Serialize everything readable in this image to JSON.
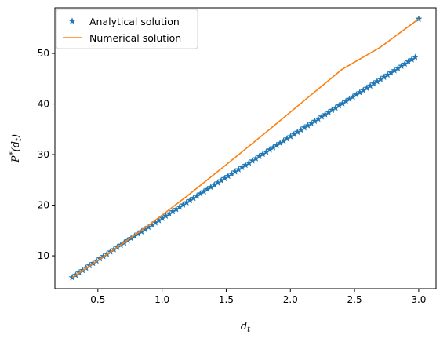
{
  "chart_data": {
    "type": "line",
    "title": "",
    "xlabel": "d_t",
    "ylabel": "P*(d_t)",
    "xlim": [
      0.165,
      3.135
    ],
    "ylim": [
      3.5,
      59.0
    ],
    "x_ticks": [
      0.5,
      1.0,
      1.5,
      2.0,
      2.5,
      3.0
    ],
    "x_tick_labels": [
      "0.5",
      "1.0",
      "1.5",
      "2.0",
      "2.5",
      "3.0"
    ],
    "y_ticks": [
      10,
      20,
      30,
      40,
      50
    ],
    "y_tick_labels": [
      "10",
      "20",
      "30",
      "40",
      "50"
    ],
    "grid": false,
    "legend_position": "top-left",
    "series": [
      {
        "name": "Analytical solution",
        "style": "markers",
        "marker": "star",
        "color": "#1f77b4",
        "x": [
          0.3,
          0.327,
          0.354,
          0.381,
          0.408,
          0.435,
          0.462,
          0.489,
          0.516,
          0.543,
          0.57,
          0.597,
          0.624,
          0.651,
          0.678,
          0.705,
          0.732,
          0.759,
          0.786,
          0.813,
          0.84,
          0.867,
          0.894,
          0.921,
          0.948,
          0.975,
          1.002,
          1.029,
          1.056,
          1.083,
          1.11,
          1.137,
          1.164,
          1.191,
          1.218,
          1.245,
          1.272,
          1.299,
          1.326,
          1.353,
          1.38,
          1.407,
          1.434,
          1.461,
          1.488,
          1.515,
          1.542,
          1.569,
          1.596,
          1.623,
          1.65,
          1.677,
          1.704,
          1.731,
          1.758,
          1.785,
          1.812,
          1.839,
          1.866,
          1.893,
          1.92,
          1.947,
          1.974,
          2.001,
          2.028,
          2.055,
          2.082,
          2.109,
          2.136,
          2.163,
          2.19,
          2.217,
          2.244,
          2.271,
          2.298,
          2.325,
          2.352,
          2.379,
          2.406,
          2.433,
          2.46,
          2.487,
          2.514,
          2.541,
          2.568,
          2.595,
          2.622,
          2.649,
          2.676,
          2.703,
          2.73,
          2.757,
          2.784,
          2.811,
          2.838,
          2.865,
          2.892,
          2.919,
          2.946,
          2.973,
          3.0
        ],
        "y": [
          5.7,
          6.18,
          6.66,
          7.13,
          7.6,
          8.07,
          8.53,
          8.99,
          9.45,
          9.9,
          10.35,
          10.8,
          11.25,
          11.7,
          12.14,
          12.58,
          13.03,
          13.47,
          13.91,
          14.35,
          14.79,
          15.23,
          15.67,
          16.11,
          16.55,
          16.99,
          17.43,
          17.88,
          18.32,
          18.76,
          19.2,
          19.64,
          20.08,
          20.52,
          20.96,
          21.39,
          21.83,
          22.27,
          22.7,
          23.14,
          23.57,
          24.01,
          24.44,
          24.88,
          25.31,
          25.75,
          26.18,
          26.62,
          27.05,
          27.49,
          27.92,
          28.36,
          28.79,
          29.23,
          29.66,
          30.1,
          30.53,
          30.97,
          31.4,
          31.84,
          32.27,
          32.71,
          33.14,
          33.58,
          34.01,
          34.45,
          34.88,
          35.32,
          35.75,
          36.19,
          36.62,
          37.06,
          37.49,
          37.93,
          38.36,
          38.8,
          39.23,
          39.67,
          40.1,
          40.54,
          40.97,
          41.41,
          41.84,
          42.28,
          42.71,
          43.15,
          43.58,
          44.02,
          44.45,
          44.89,
          45.32,
          45.76,
          46.19,
          46.63,
          47.06,
          47.5,
          47.93,
          48.37,
          48.8,
          49.24,
          56.8
        ]
      },
      {
        "name": "Numerical solution",
        "style": "line",
        "color": "#ff7f0e",
        "x": [
          0.3,
          0.6,
          0.9,
          1.2,
          1.5,
          1.8,
          2.1,
          2.4,
          2.7,
          3.0
        ],
        "y": [
          5.7,
          10.8,
          16.1,
          21.9,
          28.0,
          34.2,
          40.5,
          46.8,
          51.2,
          56.8
        ]
      }
    ]
  }
}
